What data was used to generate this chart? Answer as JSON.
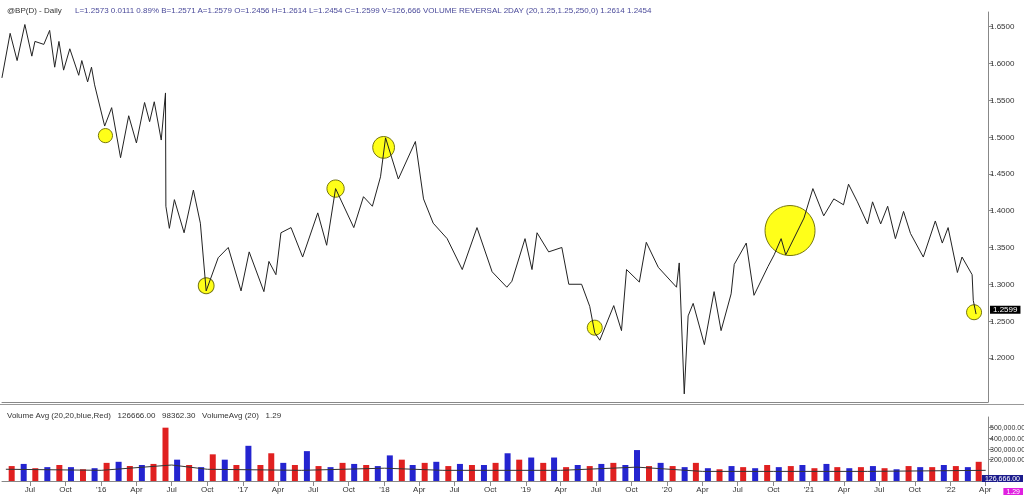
{
  "chart_data": [
    {
      "type": "line",
      "title": "@BP(D) - Daily",
      "subtitle": "L=1.2573 0.0111 0.89% B=1.2571 A=1.2579 O=1.2456 H=1.2614 L=1.2454 C=1.2599 V=126,666 VOLUME REVERSAL 2DAY (20,1.25,1.25,250,0) 1.2614 1.2454",
      "tick_labels": "y",
      "xlim": [
        "2015-04-20",
        "2022-04-08"
      ],
      "ylim": [
        1.14,
        1.67
      ],
      "yticks": [
        {
          "value": 1.2,
          "label": "1.2000"
        },
        {
          "value": 1.25,
          "label": "1.2500"
        },
        {
          "value": 1.3,
          "label": "1.3000"
        },
        {
          "value": 1.35,
          "label": "1.3500"
        },
        {
          "value": 1.4,
          "label": "1.4000"
        },
        {
          "value": 1.45,
          "label": "1.4500"
        },
        {
          "value": 1.5,
          "label": "1.5000"
        },
        {
          "value": 1.55,
          "label": "1.5500"
        },
        {
          "value": 1.6,
          "label": "1.6000"
        },
        {
          "value": 1.65,
          "label": "1.6500"
        }
      ],
      "annotations": [
        "1.2599"
      ],
      "series": [
        {
          "color": "#222222",
          "marker": "none",
          "x": [
            "2015-04-20",
            "2015-05-11",
            "2015-05-29",
            "2015-06-18",
            "2015-07-06",
            "2015-07-14",
            "2015-08-06",
            "2015-08-21",
            "2015-09-03",
            "2015-09-14",
            "2015-09-26",
            "2015-10-12",
            "2015-11-04",
            "2015-11-12",
            "2015-11-27",
            "2015-12-07",
            "2015-12-15",
            "2016-01-10",
            "2016-01-28",
            "2016-02-20",
            "2016-03-12",
            "2016-04-01",
            "2016-04-22",
            "2016-05-05",
            "2016-05-17",
            "2016-06-04",
            "2016-06-15",
            "2016-06-16",
            "2016-06-25",
            "2016-07-08",
            "2016-08-02",
            "2016-08-26",
            "2016-09-13",
            "2016-09-28",
            "2016-10-29",
            "2016-11-24",
            "2016-12-27",
            "2017-01-17",
            "2017-02-24",
            "2017-03-09",
            "2017-03-27",
            "2017-04-09",
            "2017-05-05",
            "2017-06-04",
            "2017-07-13",
            "2017-08-05",
            "2017-08-28",
            "2017-10-14",
            "2017-11-08",
            "2017-12-01",
            "2017-12-22",
            "2018-01-04",
            "2018-02-06",
            "2018-03-22",
            "2018-04-12",
            "2018-05-07",
            "2018-06-12",
            "2018-07-21",
            "2018-08-28",
            "2018-10-06",
            "2018-11-13",
            "2018-11-26",
            "2018-12-30",
            "2019-01-17",
            "2019-01-30",
            "2019-03-01",
            "2019-04-04",
            "2019-04-22",
            "2019-05-25",
            "2019-06-15",
            "2019-06-28",
            "2019-07-11",
            "2019-08-16",
            "2019-09-05",
            "2019-09-18",
            "2019-10-21",
            "2019-11-08",
            "2019-12-09",
            "2020-01-25",
            "2020-02-01",
            "2020-02-14",
            "2020-02-24",
            "2020-03-08",
            "2020-04-06",
            "2020-05-01",
            "2020-05-19",
            "2020-06-14",
            "2020-06-22",
            "2020-07-23",
            "2020-08-12",
            "2020-09-17",
            "2020-10-03",
            "2020-10-21",
            "2020-11-02",
            "2020-12-19",
            "2021-01-11",
            "2021-02-08",
            "2021-03-06",
            "2021-03-31",
            "2021-04-13",
            "2021-05-06",
            "2021-06-01",
            "2021-06-14",
            "2021-07-05",
            "2021-07-23",
            "2021-08-12",
            "2021-09-02",
            "2021-09-20",
            "2021-10-23",
            "2021-11-23",
            "2021-12-11",
            "2021-12-26",
            "2022-01-19",
            "2022-01-31",
            "2022-02-26",
            "2022-03-01",
            "2022-03-08"
          ],
          "values": [
            1.581,
            1.641,
            1.604,
            1.653,
            1.61,
            1.63,
            1.626,
            1.645,
            1.595,
            1.63,
            1.591,
            1.62,
            1.584,
            1.604,
            1.575,
            1.595,
            1.571,
            1.515,
            1.54,
            1.472,
            1.529,
            1.492,
            1.547,
            1.521,
            1.548,
            1.496,
            1.56,
            1.406,
            1.376,
            1.415,
            1.37,
            1.428,
            1.383,
            1.291,
            1.336,
            1.35,
            1.291,
            1.344,
            1.29,
            1.331,
            1.313,
            1.37,
            1.377,
            1.337,
            1.397,
            1.353,
            1.43,
            1.377,
            1.419,
            1.406,
            1.446,
            1.499,
            1.443,
            1.494,
            1.416,
            1.383,
            1.362,
            1.32,
            1.377,
            1.317,
            1.296,
            1.304,
            1.362,
            1.32,
            1.37,
            1.344,
            1.35,
            1.3,
            1.3,
            1.27,
            1.234,
            1.224,
            1.271,
            1.237,
            1.32,
            1.303,
            1.357,
            1.323,
            1.296,
            1.329,
            1.151,
            1.257,
            1.274,
            1.218,
            1.29,
            1.237,
            1.287,
            1.327,
            1.356,
            1.285,
            1.324,
            1.34,
            1.362,
            1.34,
            1.39,
            1.43,
            1.393,
            1.416,
            1.408,
            1.436,
            1.412,
            1.382,
            1.412,
            1.382,
            1.406,
            1.362,
            1.399,
            1.369,
            1.337,
            1.386,
            1.356,
            1.377,
            1.316,
            1.337,
            1.313,
            1.278,
            1.26
          ]
        },
        {
          "type": "bubble",
          "color": "#ffff00",
          "marker": "circle",
          "x": [
            "2016-01-12",
            "2016-09-28",
            "2017-08-28",
            "2017-12-30",
            "2019-06-28",
            "2020-11-13",
            "2022-03-03"
          ],
          "values": [
            1.502,
            1.298,
            1.43,
            1.486,
            1.241,
            1.373,
            1.262
          ],
          "sizes": [
            0.08,
            0.1,
            0.12,
            0.19,
            0.09,
            1,
            0.09
          ]
        }
      ]
    },
    {
      "type": "bar",
      "title": "Volume Avg (20,20,blue,Red)   126666.00   98362.30   VolumeAvg (20)   1.29",
      "annotations": [
        "126,666.00",
        "1.29"
      ],
      "marker": "none",
      "xlim": [
        "2015-04-20",
        "2022-04-08"
      ],
      "ylim": [
        0,
        600000
      ],
      "yticks": [
        {
          "value": 200000,
          "label": "200,000.00"
        },
        {
          "value": 300000,
          "label": "300,000.00"
        },
        {
          "value": 400000,
          "label": "400,000.00"
        },
        {
          "value": 500000,
          "label": "500,000.00"
        }
      ],
      "xticks": [
        {
          "value": "2015-07-01",
          "label": "Jul"
        },
        {
          "value": "2015-10-01",
          "label": "Oct"
        },
        {
          "value": "2016-01-01",
          "label": "'16"
        },
        {
          "value": "2016-04-01",
          "label": "Apr"
        },
        {
          "value": "2016-07-01",
          "label": "Jul"
        },
        {
          "value": "2016-10-01",
          "label": "Oct"
        },
        {
          "value": "2017-01-01",
          "label": "'17"
        },
        {
          "value": "2017-04-01",
          "label": "Apr"
        },
        {
          "value": "2017-07-01",
          "label": "Jul"
        },
        {
          "value": "2017-10-01",
          "label": "Oct"
        },
        {
          "value": "2018-01-01",
          "label": "'18"
        },
        {
          "value": "2018-04-01",
          "label": "Apr"
        },
        {
          "value": "2018-07-01",
          "label": "Jul"
        },
        {
          "value": "2018-10-01",
          "label": "Oct"
        },
        {
          "value": "2019-01-01",
          "label": "'19"
        },
        {
          "value": "2019-04-01",
          "label": "Apr"
        },
        {
          "value": "2019-07-01",
          "label": "Jul"
        },
        {
          "value": "2019-10-01",
          "label": "Oct"
        },
        {
          "value": "2020-01-01",
          "label": "'20"
        },
        {
          "value": "2020-04-01",
          "label": "Apr"
        },
        {
          "value": "2020-07-01",
          "label": "Jul"
        },
        {
          "value": "2020-10-01",
          "label": "Oct"
        },
        {
          "value": "2021-01-01",
          "label": "'21"
        },
        {
          "value": "2021-04-01",
          "label": "Apr"
        },
        {
          "value": "2021-07-01",
          "label": "Jul"
        },
        {
          "value": "2021-10-01",
          "label": "Oct"
        },
        {
          "value": "2022-01-01",
          "label": "'22"
        },
        {
          "value": "2022-04-01",
          "label": "Apr"
        }
      ],
      "series": [
        {
          "x": [
            "2015-05-15",
            "2015-06-15",
            "2015-07-15",
            "2015-08-15",
            "2015-09-15",
            "2015-10-15",
            "2015-11-15",
            "2015-12-15",
            "2016-01-15",
            "2016-02-15",
            "2016-03-15",
            "2016-04-15",
            "2016-05-15",
            "2016-06-15",
            "2016-07-15",
            "2016-08-15",
            "2016-09-15",
            "2016-10-15",
            "2016-11-15",
            "2016-12-15",
            "2017-01-15",
            "2017-02-15",
            "2017-03-15",
            "2017-04-15",
            "2017-05-15",
            "2017-06-15",
            "2017-07-15",
            "2017-08-15",
            "2017-09-15",
            "2017-10-15",
            "2017-11-15",
            "2017-12-15",
            "2018-01-15",
            "2018-02-15",
            "2018-03-15",
            "2018-04-15",
            "2018-05-15",
            "2018-06-15",
            "2018-07-15",
            "2018-08-15",
            "2018-09-15",
            "2018-10-15",
            "2018-11-15",
            "2018-12-15",
            "2019-01-15",
            "2019-02-15",
            "2019-03-15",
            "2019-04-15",
            "2019-05-15",
            "2019-06-15",
            "2019-07-15",
            "2019-08-15",
            "2019-09-15",
            "2019-10-15",
            "2019-11-15",
            "2019-12-15",
            "2020-01-15",
            "2020-02-15",
            "2020-03-15",
            "2020-04-15",
            "2020-05-15",
            "2020-06-15",
            "2020-07-15",
            "2020-08-15",
            "2020-09-15",
            "2020-10-15",
            "2020-11-15",
            "2020-12-15",
            "2021-01-15",
            "2021-02-15",
            "2021-03-15",
            "2021-04-15",
            "2021-05-15",
            "2021-06-15",
            "2021-07-15",
            "2021-08-15",
            "2021-09-15",
            "2021-10-15",
            "2021-11-15",
            "2021-12-15",
            "2022-01-15",
            "2022-02-15",
            "2022-03-15"
          ],
          "values": [
            140000,
            160000,
            120000,
            130000,
            150000,
            130000,
            110000,
            120000,
            170000,
            180000,
            140000,
            150000,
            160000,
            500000,
            200000,
            150000,
            130000,
            250000,
            200000,
            150000,
            330000,
            150000,
            260000,
            170000,
            150000,
            280000,
            140000,
            130000,
            170000,
            160000,
            150000,
            140000,
            240000,
            200000,
            150000,
            170000,
            180000,
            140000,
            160000,
            150000,
            150000,
            170000,
            260000,
            200000,
            220000,
            170000,
            220000,
            130000,
            150000,
            140000,
            160000,
            170000,
            150000,
            290000,
            140000,
            170000,
            140000,
            130000,
            170000,
            120000,
            110000,
            140000,
            130000,
            120000,
            150000,
            130000,
            140000,
            150000,
            120000,
            160000,
            130000,
            120000,
            130000,
            140000,
            120000,
            110000,
            140000,
            130000,
            130000,
            150000,
            140000,
            130000,
            180000
          ],
          "colors": [
            "#e02020",
            "#2424d0",
            "#e02020",
            "#2424d0",
            "#e02020",
            "#2424d0",
            "#e02020",
            "#2424d0",
            "#e02020",
            "#2424d0",
            "#e02020",
            "#2424d0",
            "#e02020",
            "#e02020",
            "#2424d0",
            "#e02020",
            "#2424d0",
            "#e02020",
            "#2424d0",
            "#e02020",
            "#2424d0",
            "#e02020",
            "#e02020",
            "#2424d0",
            "#e02020",
            "#2424d0",
            "#e02020",
            "#2424d0",
            "#e02020",
            "#2424d0",
            "#e02020",
            "#2424d0",
            "#2424d0",
            "#e02020",
            "#2424d0",
            "#e02020",
            "#2424d0",
            "#e02020",
            "#2424d0",
            "#e02020",
            "#2424d0",
            "#e02020",
            "#2424d0",
            "#e02020",
            "#2424d0",
            "#e02020",
            "#2424d0",
            "#e02020",
            "#2424d0",
            "#e02020",
            "#2424d0",
            "#e02020",
            "#2424d0",
            "#2424d0",
            "#e02020",
            "#2424d0",
            "#e02020",
            "#2424d0",
            "#e02020",
            "#2424d0",
            "#e02020",
            "#2424d0",
            "#e02020",
            "#2424d0",
            "#e02020",
            "#2424d0",
            "#e02020",
            "#2424d0",
            "#e02020",
            "#2424d0",
            "#e02020",
            "#2424d0",
            "#e02020",
            "#2424d0",
            "#e02020",
            "#2424d0",
            "#e02020",
            "#2424d0",
            "#e02020",
            "#2424d0",
            "#e02020",
            "#2424d0",
            "#e02020"
          ]
        },
        {
          "type": "line",
          "color": "#333333",
          "x": [
            "2015-05-01",
            "2016-01-01",
            "2016-07-01",
            "2016-10-01",
            "2017-06-01",
            "2018-01-01",
            "2018-06-01",
            "2019-04-01",
            "2019-10-15",
            "2020-04-01",
            "2020-10-01",
            "2021-06-01",
            "2022-04-01"
          ],
          "values": [
            110000,
            100000,
            150000,
            110000,
            100000,
            120000,
            100000,
            100000,
            130000,
            90000,
            90000,
            90000,
            100000
          ]
        }
      ]
    }
  ]
}
